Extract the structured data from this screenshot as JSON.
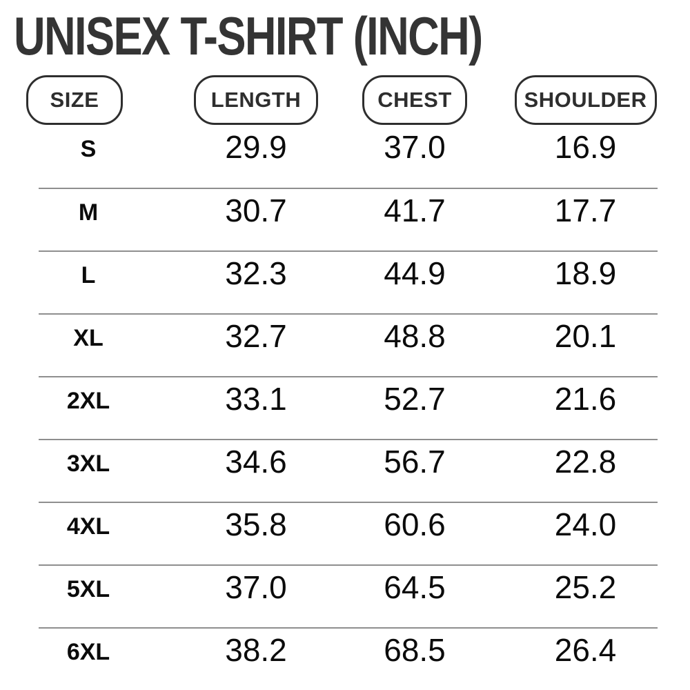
{
  "page": {
    "title": "UNISEX T-SHIRT (INCH)",
    "unit": "INCH"
  },
  "colors": {
    "title": "#343434",
    "pill": "#2e2e2e",
    "divider": "#8e8e8e",
    "text": "#0b0b0b",
    "background": "#ffffff"
  },
  "table": {
    "columns": [
      {
        "key": "size",
        "label": "SIZE"
      },
      {
        "key": "length",
        "label": "LENGTH"
      },
      {
        "key": "chest",
        "label": "CHEST"
      },
      {
        "key": "shoulder",
        "label": "SHOULDER"
      }
    ],
    "rows": [
      {
        "size": "S",
        "length": "29.9",
        "chest": "37.0",
        "shoulder": "16.9"
      },
      {
        "size": "M",
        "length": "30.7",
        "chest": "41.7",
        "shoulder": "17.7"
      },
      {
        "size": "L",
        "length": "32.3",
        "chest": "44.9",
        "shoulder": "18.9"
      },
      {
        "size": "XL",
        "length": "32.7",
        "chest": "48.8",
        "shoulder": "20.1"
      },
      {
        "size": "2XL",
        "length": "33.1",
        "chest": "52.7",
        "shoulder": "21.6"
      },
      {
        "size": "3XL",
        "length": "34.6",
        "chest": "56.7",
        "shoulder": "22.8"
      },
      {
        "size": "4XL",
        "length": "35.8",
        "chest": "60.6",
        "shoulder": "24.0"
      },
      {
        "size": "5XL",
        "length": "37.0",
        "chest": "64.5",
        "shoulder": "25.2"
      },
      {
        "size": "6XL",
        "length": "38.2",
        "chest": "68.5",
        "shoulder": "26.4"
      }
    ]
  },
  "chart_data": {
    "type": "table",
    "title": "UNISEX T-SHIRT (INCH)",
    "unit": "inch",
    "columns": [
      "SIZE",
      "LENGTH",
      "CHEST",
      "SHOULDER"
    ],
    "rows": [
      [
        "S",
        29.9,
        37.0,
        16.9
      ],
      [
        "M",
        30.7,
        41.7,
        17.7
      ],
      [
        "L",
        32.3,
        44.9,
        18.9
      ],
      [
        "XL",
        32.7,
        48.8,
        20.1
      ],
      [
        "2XL",
        33.1,
        52.7,
        21.6
      ],
      [
        "3XL",
        34.6,
        56.7,
        22.8
      ],
      [
        "4XL",
        35.8,
        60.6,
        24.0
      ],
      [
        "5XL",
        37.0,
        64.5,
        25.2
      ],
      [
        "6XL",
        38.2,
        68.5,
        26.4
      ]
    ]
  }
}
